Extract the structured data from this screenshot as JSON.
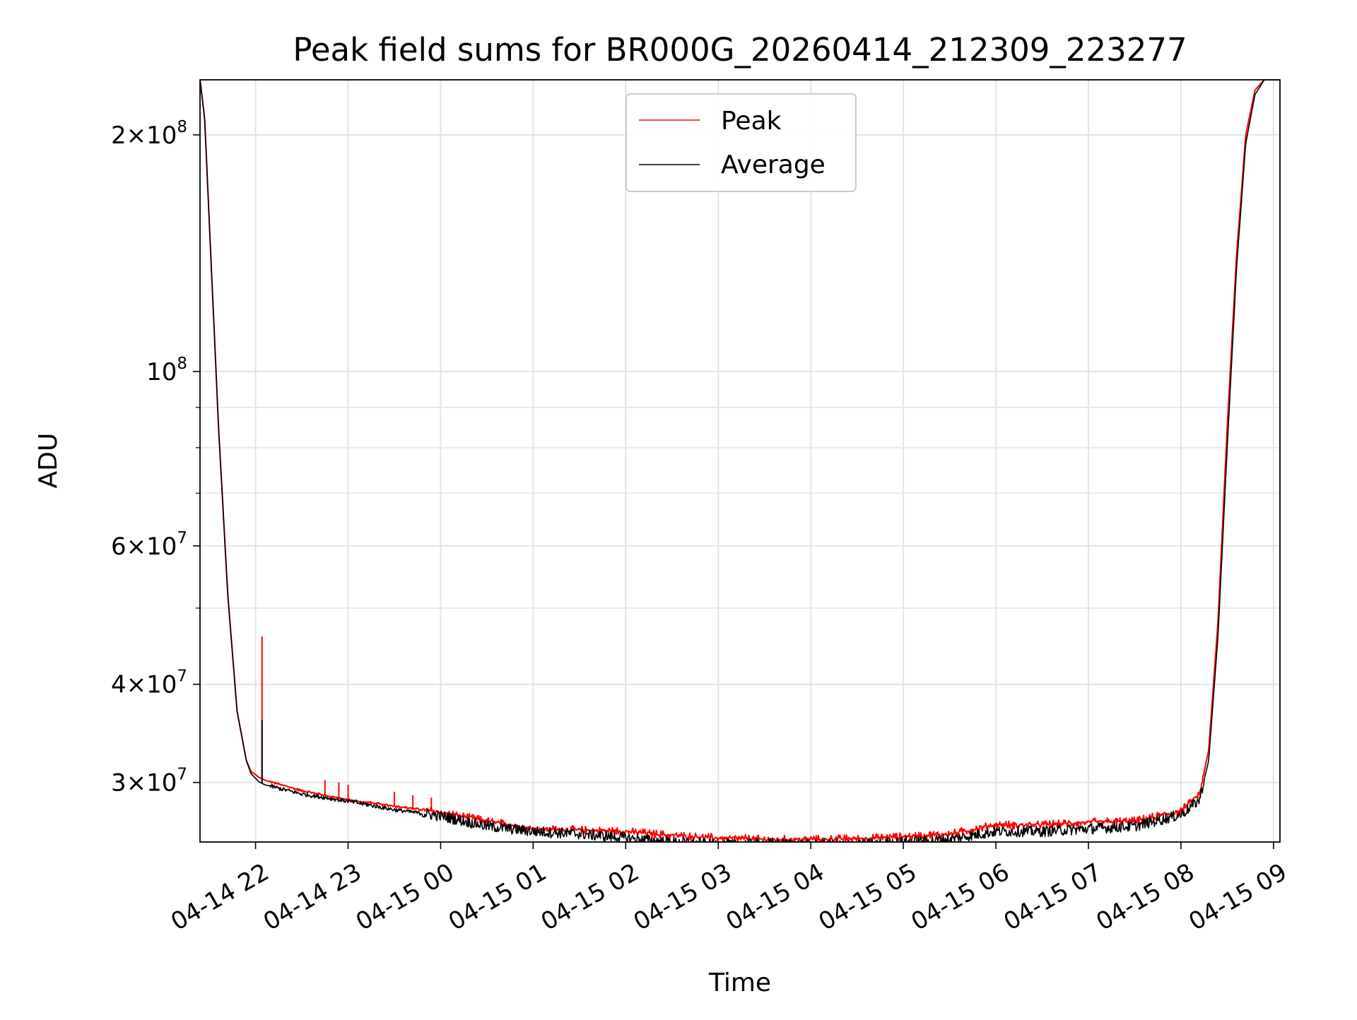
{
  "chart_data": {
    "type": "line",
    "title": "Peak field sums for BR000G_20260414_212309_223277",
    "xlabel": "Time",
    "ylabel": "ADU",
    "yscale": "log",
    "xlim_hours": [
      -2.6,
      9.07
    ],
    "ylim": [
      25200000,
      235000000
    ],
    "grid": true,
    "legend_position": "upper-center",
    "x_ticks": [
      {
        "value": -2,
        "label": "04-14 22"
      },
      {
        "value": -1,
        "label": "04-14 23"
      },
      {
        "value": 0,
        "label": "04-15 00"
      },
      {
        "value": 1,
        "label": "04-15 01"
      },
      {
        "value": 2,
        "label": "04-15 02"
      },
      {
        "value": 3,
        "label": "04-15 03"
      },
      {
        "value": 4,
        "label": "04-15 04"
      },
      {
        "value": 5,
        "label": "04-15 05"
      },
      {
        "value": 6,
        "label": "04-15 06"
      },
      {
        "value": 7,
        "label": "04-15 07"
      },
      {
        "value": 8,
        "label": "04-15 08"
      },
      {
        "value": 9,
        "label": "04-15 09"
      }
    ],
    "y_major_ticks": [
      {
        "value": 30000000,
        "mant": "3",
        "exp": "7"
      },
      {
        "value": 40000000,
        "mant": "4",
        "exp": "7"
      },
      {
        "value": 60000000,
        "mant": "6",
        "exp": "7"
      },
      {
        "value": 100000000,
        "mant": "",
        "exp": "8"
      },
      {
        "value": 200000000,
        "mant": "2",
        "exp": "8"
      }
    ],
    "y_minor_ticks": [
      50000000,
      70000000,
      80000000,
      90000000
    ],
    "series": [
      {
        "name": "Peak",
        "color": "#ff0000",
        "x": [
          -2.6,
          -2.55,
          -2.5,
          -2.45,
          -2.4,
          -2.3,
          -2.2,
          -2.1,
          -2.05,
          -1.97,
          -1.9,
          -1.5,
          -1.0,
          -0.5,
          0.0,
          0.5,
          1.0,
          1.5,
          2.0,
          2.5,
          3.0,
          3.5,
          4.0,
          4.5,
          5.0,
          5.5,
          6.0,
          6.5,
          7.0,
          7.5,
          8.0,
          8.2,
          8.3,
          8.4,
          8.5,
          8.6,
          8.7,
          8.8,
          8.9,
          9.07
        ],
        "values": [
          235000000,
          210000000,
          155000000,
          115000000,
          85000000,
          52000000,
          37000000,
          32000000,
          31000000,
          30500000,
          30200000,
          29300000,
          28500000,
          28000000,
          27500000,
          26800000,
          26200000,
          26100000,
          26000000,
          25700000,
          25500000,
          25400000,
          25400000,
          25450000,
          25600000,
          25800000,
          26500000,
          26500000,
          26700000,
          26800000,
          27600000,
          29000000,
          33000000,
          48000000,
          85000000,
          140000000,
          200000000,
          228000000,
          235000000,
          235000000
        ],
        "spikes": [
          {
            "x": -1.93,
            "value": 46000000
          },
          {
            "x": -1.25,
            "value": 30200000
          },
          {
            "x": -1.1,
            "value": 30000000
          },
          {
            "x": -1.0,
            "value": 29800000
          },
          {
            "x": -0.5,
            "value": 29200000
          },
          {
            "x": -0.3,
            "value": 28900000
          },
          {
            "x": -0.1,
            "value": 28700000
          }
        ]
      },
      {
        "name": "Average",
        "color": "#000000",
        "x": [
          -2.6,
          -2.55,
          -2.5,
          -2.45,
          -2.4,
          -2.3,
          -2.2,
          -2.1,
          -2.05,
          -1.97,
          -1.9,
          -1.5,
          -1.0,
          -0.5,
          0.0,
          0.5,
          1.0,
          1.5,
          2.0,
          2.5,
          3.0,
          3.5,
          4.0,
          4.5,
          5.0,
          5.5,
          6.0,
          6.5,
          7.0,
          7.5,
          8.0,
          8.2,
          8.3,
          8.4,
          8.5,
          8.6,
          8.7,
          8.8,
          8.9,
          9.07
        ],
        "values": [
          235000000,
          210000000,
          155000000,
          115000000,
          85000000,
          52000000,
          37000000,
          32000000,
          30800000,
          30100000,
          29800000,
          29000000,
          28400000,
          27700000,
          27200000,
          26400000,
          26000000,
          25800000,
          25500000,
          25200000,
          25000000,
          25100000,
          25000000,
          25000000,
          25200000,
          25400000,
          26000000,
          26000000,
          26200000,
          26400000,
          27300000,
          28500000,
          32000000,
          46000000,
          80000000,
          135000000,
          195000000,
          225000000,
          235000000,
          235000000
        ],
        "spikes": [
          {
            "x": -1.93,
            "value": 36000000
          }
        ]
      }
    ]
  }
}
